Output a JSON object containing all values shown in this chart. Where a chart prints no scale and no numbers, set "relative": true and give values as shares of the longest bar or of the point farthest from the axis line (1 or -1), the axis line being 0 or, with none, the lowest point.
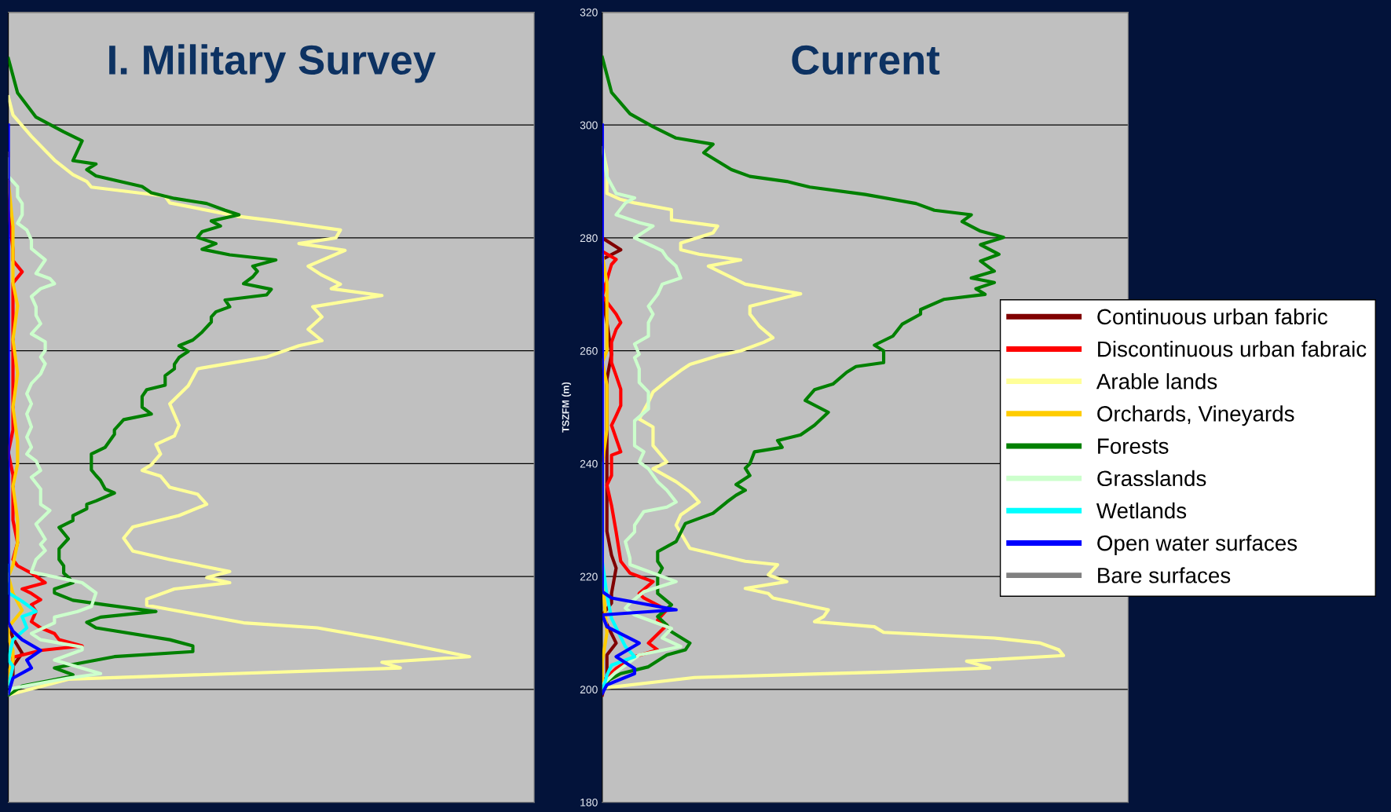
{
  "chart_data": [
    {
      "type": "line",
      "title": "I. Military Survey",
      "orientation": "horizontal",
      "relative": true,
      "ylim": [
        180,
        320
      ],
      "yticks": [
        180,
        200,
        220,
        240,
        260,
        280,
        300,
        320
      ],
      "grid": "y",
      "tick_labels": false,
      "legend": false,
      "line_style": "solid",
      "marker": "none",
      "series": [
        {
          "color": "#800000",
          "x": [
            200.5,
            202.6,
            204.1,
            206.4,
            209.1,
            211.5
          ],
          "values": [
            0,
            0.01,
            0.01,
            0.03,
            0.01,
            0
          ]
        },
        {
          "color": "#ff0000",
          "x": [
            201.7,
            204.1,
            205.7,
            206.9,
            207.7,
            208.8,
            209.9,
            210.9,
            212,
            213.8,
            215,
            215.9,
            217,
            217.8,
            218.9,
            220.6,
            221.9,
            223,
            226,
            230,
            234,
            238,
            242,
            246,
            250,
            255,
            258,
            262,
            265,
            268,
            272,
            274,
            276,
            278,
            285,
            290
          ],
          "values": [
            0,
            0.01,
            0.01,
            0.07,
            0.16,
            0.11,
            0.1,
            0.07,
            0.05,
            0.06,
            0.05,
            0.07,
            0.05,
            0.03,
            0.08,
            0.05,
            0.02,
            0.01,
            0.02,
            0.01,
            0.01,
            0.01,
            0,
            0.01,
            0.01,
            0.01,
            0.01,
            0.01,
            0.01,
            0.01,
            0.01,
            0.03,
            0.01,
            0.01,
            0,
            0
          ]
        },
        {
          "color": "#ffff99",
          "x": [
            199,
            201.8,
            203.8,
            204.8,
            205.8,
            208.9,
            210.9,
            211.8,
            214.9,
            216,
            217.8,
            218.9,
            219.8,
            220.9,
            223,
            224.5,
            226.8,
            228.8,
            230.8,
            232.8,
            234.6,
            235.8,
            237.8,
            238.8,
            239.8,
            241.7,
            243.4,
            244.9,
            246.8,
            250.6,
            253.8,
            256.8,
            258.9,
            260.9,
            261.8,
            263.8,
            266,
            267.8,
            269.8,
            271,
            271.8,
            273.4,
            275,
            277.8,
            279,
            280,
            281.4,
            283,
            283.8,
            286.2,
            287.4,
            289,
            290,
            291.2,
            293.8,
            298,
            301.8,
            305
          ],
          "values": [
            0,
            0.13,
            0.85,
            0.81,
            1.0,
            0.81,
            0.67,
            0.51,
            0.3,
            0.3,
            0.36,
            0.48,
            0.43,
            0.48,
            0.35,
            0.27,
            0.25,
            0.27,
            0.37,
            0.43,
            0.41,
            0.35,
            0.33,
            0.29,
            0.31,
            0.33,
            0.32,
            0.36,
            0.37,
            0.35,
            0.39,
            0.41,
            0.56,
            0.63,
            0.68,
            0.65,
            0.68,
            0.66,
            0.81,
            0.7,
            0.72,
            0.68,
            0.65,
            0.73,
            0.63,
            0.71,
            0.72,
            0.58,
            0.5,
            0.35,
            0.34,
            0.18,
            0.17,
            0.14,
            0.1,
            0.05,
            0.01,
            0
          ]
        },
        {
          "color": "#ffcc00",
          "x": [
            201,
            203,
            205,
            207,
            209,
            211,
            213,
            214,
            217,
            220,
            222,
            226,
            230,
            236,
            240,
            244,
            250,
            256,
            262,
            268,
            272,
            278,
            282,
            290,
            295
          ],
          "values": [
            0,
            0,
            0.01,
            0.01,
            0,
            0,
            0.02,
            0.03,
            0.01,
            0,
            0.01,
            0.02,
            0.02,
            0.01,
            0.02,
            0.02,
            0.01,
            0.02,
            0.01,
            0.02,
            0.01,
            0.01,
            0.01,
            0,
            0
          ]
        },
        {
          "color": "#008000",
          "x": [
            199,
            200.6,
            202.2,
            202.6,
            203.8,
            205.8,
            206.7,
            207.7,
            208.8,
            210.9,
            211.9,
            212.8,
            213.8,
            215,
            215.8,
            217.1,
            217.8,
            218.9,
            219.9,
            220.6,
            221.9,
            223,
            224.9,
            226.7,
            228.7,
            229.9,
            230.8,
            232,
            232.8,
            233.4,
            234.8,
            235.5,
            237,
            237.9,
            238.9,
            241.7,
            242.9,
            245.2,
            246,
            247.8,
            248.8,
            250,
            251.9,
            253.1,
            253.9,
            255.6,
            256.8,
            257.6,
            258.8,
            259.9,
            260.9,
            261.9,
            263.3,
            265.1,
            266,
            266.9,
            267.8,
            269,
            269.9,
            270.9,
            271.9,
            273.1,
            274.1,
            275,
            276.1,
            277,
            278,
            279,
            280.1,
            281.1,
            282.1,
            283,
            284.1,
            284.9,
            286.1,
            287,
            288,
            289.1,
            291,
            292.1,
            293.1,
            293.7,
            297.2,
            298.8,
            301.4,
            305.7,
            311.8
          ],
          "values": [
            0,
            0.03,
            0.13,
            0.14,
            0.1,
            0.23,
            0.4,
            0.4,
            0.35,
            0.19,
            0.17,
            0.2,
            0.32,
            0.21,
            0.14,
            0.1,
            0.1,
            0.14,
            0.13,
            0.12,
            0.12,
            0.11,
            0.11,
            0.13,
            0.11,
            0.14,
            0.14,
            0.17,
            0.17,
            0.19,
            0.23,
            0.21,
            0.2,
            0.19,
            0.18,
            0.18,
            0.21,
            0.23,
            0.23,
            0.25,
            0.31,
            0.29,
            0.29,
            0.3,
            0.34,
            0.34,
            0.36,
            0.36,
            0.37,
            0.39,
            0.37,
            0.4,
            0.42,
            0.44,
            0.44,
            0.45,
            0.48,
            0.47,
            0.56,
            0.57,
            0.51,
            0.53,
            0.54,
            0.53,
            0.58,
            0.48,
            0.42,
            0.45,
            0.41,
            0.42,
            0.46,
            0.44,
            0.5,
            0.47,
            0.43,
            0.36,
            0.31,
            0.29,
            0.19,
            0.17,
            0.19,
            0.14,
            0.16,
            0.12,
            0.06,
            0.02,
            0
          ]
        },
        {
          "color": "#ccffcc",
          "x": [
            199.5,
            200.2,
            202,
            202.8,
            205.2,
            207,
            207.5,
            208.8,
            209.9,
            211.8,
            212.8,
            213.8,
            214.7,
            217.1,
            218.9,
            220.8,
            223,
            224.6,
            225.7,
            226.6,
            229.3,
            231.7,
            232.8,
            235.5,
            237.6,
            238.8,
            240.5,
            241.7,
            242.9,
            244.7,
            246.5,
            248.8,
            250.6,
            252.4,
            254.2,
            255.9,
            257.7,
            258.9,
            260.1,
            261.6,
            263,
            264.8,
            266.3,
            267.8,
            269.6,
            271,
            271.9,
            272.8,
            273.7,
            276.1,
            278.1,
            279.6,
            281.4,
            282.6,
            284.1,
            286.1,
            287.3,
            289.1,
            290.9,
            294
          ],
          "values": [
            0,
            0.01,
            0.13,
            0.2,
            0.1,
            0.16,
            0.16,
            0.07,
            0.05,
            0.1,
            0.1,
            0.15,
            0.18,
            0.19,
            0.16,
            0.05,
            0.06,
            0.08,
            0.07,
            0.08,
            0.06,
            0.09,
            0.07,
            0.07,
            0.05,
            0.07,
            0.06,
            0.04,
            0.05,
            0.04,
            0.05,
            0.04,
            0.05,
            0.04,
            0.05,
            0.07,
            0.08,
            0.07,
            0.08,
            0.08,
            0.05,
            0.07,
            0.06,
            0.06,
            0.05,
            0.07,
            0.1,
            0.09,
            0.06,
            0.08,
            0.05,
            0.05,
            0.04,
            0.02,
            0.03,
            0.03,
            0.02,
            0.02,
            0,
            0
          ]
        },
        {
          "color": "#00ffff",
          "x": [
            200.5,
            204.1,
            205.2,
            208.8,
            210.9,
            212.9,
            213.8,
            215.6,
            217.1,
            222
          ],
          "values": [
            0,
            0.01,
            0,
            0.01,
            0.04,
            0.03,
            0.06,
            0.03,
            0,
            0
          ]
        },
        {
          "color": "#0000ff",
          "x": [
            199.3,
            202,
            203.8,
            205.2,
            206.9,
            208.8,
            210.3,
            211.8,
            300
          ],
          "values": [
            0,
            0.01,
            0.05,
            0.04,
            0.07,
            0.03,
            0.01,
            0,
            0
          ]
        }
      ]
    },
    {
      "type": "line",
      "title": "Current",
      "ylabel": "TSZFM (m)",
      "orientation": "horizontal",
      "relative": true,
      "ylim": [
        180,
        320
      ],
      "yticks": [
        180,
        200,
        220,
        240,
        260,
        280,
        300,
        320
      ],
      "grid": "y",
      "tick_labels": "y",
      "legend": "right",
      "line_style": "solid",
      "marker": "none",
      "series": [
        {
          "name": "Continuous urban fabric",
          "color": "#800000",
          "x": [
            199,
            202.5,
            206.1,
            208.2,
            213.2,
            215.3,
            217,
            221.5,
            223.8,
            228,
            235,
            245,
            255,
            259.4,
            265,
            270,
            276.2,
            277.9,
            280
          ],
          "values": [
            0,
            0.01,
            0.01,
            0.03,
            0,
            0.02,
            0.02,
            0.03,
            0.02,
            0.01,
            0.01,
            0.01,
            0.01,
            0.02,
            0.01,
            0,
            0,
            0.04,
            0
          ]
        },
        {
          "name": "Discontinuous urban fabraic",
          "color": "#ff0000",
          "x": [
            201.4,
            203.7,
            205.8,
            207,
            208.2,
            211.4,
            212.3,
            214.1,
            216.2,
            217,
            219.1,
            220.6,
            222.7,
            227.9,
            232.6,
            236.2,
            237.9,
            241.5,
            242.1,
            246.8,
            248.5,
            250.3,
            253.2,
            255.6,
            257.9,
            259.1,
            261.5,
            263.8,
            265,
            266.5,
            269.7,
            272.6,
            275.3,
            276.2,
            277.6
          ],
          "values": [
            0,
            0.03,
            0.07,
            0.12,
            0.1,
            0.14,
            0.12,
            0.14,
            0.09,
            0.08,
            0.11,
            0.06,
            0.04,
            0.03,
            0.02,
            0.01,
            0.02,
            0.02,
            0.04,
            0.02,
            0.03,
            0.04,
            0.04,
            0.03,
            0.02,
            0.02,
            0.02,
            0.03,
            0.04,
            0.03,
            0,
            0.01,
            0.02,
            0.03,
            0
          ]
        },
        {
          "name": "Arable lands",
          "color": "#ffff99",
          "x": [
            200.2,
            202.1,
            203.1,
            203.8,
            205,
            206,
            207,
            208.2,
            209.1,
            210.1,
            211.1,
            212,
            212.9,
            214.1,
            216.2,
            217,
            217.9,
            219.1,
            220.3,
            222.1,
            222.7,
            225,
            229.1,
            230.9,
            233.2,
            235,
            236.8,
            239.1,
            240.3,
            243.2,
            246.5,
            247.9,
            250.9,
            252.7,
            254.7,
            256.5,
            257.6,
            259.1,
            260,
            261.5,
            262.3,
            264.4,
            266.5,
            267.9,
            270.1,
            271.8,
            275,
            276.1,
            277.1,
            277.9,
            279.1,
            280.9,
            282.1,
            283.2,
            285,
            286.2,
            286.8,
            287.9,
            292.1,
            296
          ],
          "values": [
            0,
            0.2,
            0.62,
            0.84,
            0.79,
            1.0,
            0.99,
            0.95,
            0.85,
            0.61,
            0.59,
            0.46,
            0.48,
            0.49,
            0.37,
            0.36,
            0.31,
            0.4,
            0.36,
            0.38,
            0.31,
            0.19,
            0.16,
            0.17,
            0.21,
            0.19,
            0.16,
            0.11,
            0.14,
            0.11,
            0.11,
            0.08,
            0.1,
            0.11,
            0.14,
            0.17,
            0.19,
            0.25,
            0.3,
            0.35,
            0.37,
            0.34,
            0.32,
            0.32,
            0.43,
            0.31,
            0.23,
            0.3,
            0.21,
            0.17,
            0.17,
            0.24,
            0.25,
            0.15,
            0.15,
            0.07,
            0.04,
            0.01,
            0.01,
            0
          ]
        },
        {
          "name": "Orchards, Vineyards",
          "color": "#ffcc00",
          "x": [
            201,
            205,
            210,
            220,
            230,
            240,
            246,
            254,
            258,
            260,
            266,
            272,
            277
          ],
          "values": [
            0,
            0,
            0.01,
            0,
            0,
            0,
            0.01,
            0.01,
            0,
            0.01,
            0.01,
            0.01,
            0
          ]
        },
        {
          "name": "Forests",
          "color": "#008000",
          "x": [
            199.9,
            201.7,
            202.8,
            204,
            206.1,
            207,
            208.2,
            210.2,
            211.4,
            212.9,
            215,
            217,
            220,
            221.5,
            222.7,
            224.4,
            226.2,
            229.4,
            230.3,
            231.2,
            233.2,
            234.4,
            235.3,
            236.3,
            237.9,
            239.2,
            240,
            242.1,
            242.9,
            244.1,
            245.1,
            246.8,
            249.1,
            251.2,
            253.1,
            254.1,
            256.2,
            257.2,
            257.9,
            260,
            261,
            262.6,
            264.7,
            266.5,
            267.3,
            269.1,
            270,
            271,
            272.1,
            272.9,
            274.1,
            275.9,
            277.1,
            278.8,
            280.1,
            281.2,
            282.9,
            284.1,
            284.9,
            286.1,
            287.7,
            289,
            290,
            290.9,
            292.1,
            295.1,
            296.6,
            297.7,
            299.7,
            302,
            305.8,
            308.9,
            312
          ],
          "values": [
            0,
            0.015,
            0.04,
            0.1,
            0.14,
            0.18,
            0.19,
            0.15,
            0.14,
            0.12,
            0.15,
            0.12,
            0.12,
            0.13,
            0.12,
            0.12,
            0.16,
            0.18,
            0.21,
            0.24,
            0.27,
            0.29,
            0.31,
            0.29,
            0.32,
            0.31,
            0.32,
            0.33,
            0.39,
            0.38,
            0.43,
            0.46,
            0.49,
            0.44,
            0.46,
            0.5,
            0.53,
            0.55,
            0.61,
            0.61,
            0.59,
            0.63,
            0.65,
            0.69,
            0.69,
            0.74,
            0.83,
            0.81,
            0.85,
            0.8,
            0.85,
            0.82,
            0.86,
            0.82,
            0.87,
            0.82,
            0.78,
            0.8,
            0.72,
            0.68,
            0.57,
            0.45,
            0.4,
            0.32,
            0.28,
            0.22,
            0.24,
            0.16,
            0.11,
            0.06,
            0.02,
            0.01,
            0
          ]
        },
        {
          "name": "Grasslands",
          "color": "#ccffcc",
          "x": [
            200.8,
            203.1,
            206.1,
            207.6,
            209.1,
            210.8,
            213.2,
            214.4,
            215.3,
            217.3,
            219.1,
            222.1,
            223.2,
            226.2,
            227.9,
            229.1,
            231.5,
            232.3,
            233.2,
            235.3,
            236.8,
            239.1,
            240.3,
            242.1,
            243.2,
            245.6,
            247.6,
            249.7,
            251.2,
            252.7,
            254.4,
            256.8,
            258.8,
            259.4,
            261.2,
            262.6,
            265,
            266.5,
            267.9,
            270,
            271.8,
            272.9,
            275,
            276.5,
            277.7,
            278.5,
            280,
            282.1,
            282.7,
            284.1,
            286.2,
            287.1,
            287.9,
            290.9,
            296
          ],
          "values": [
            0,
            0.03,
            0.08,
            0.17,
            0.13,
            0.15,
            0.07,
            0.05,
            0.06,
            0.09,
            0.16,
            0.06,
            0.06,
            0.05,
            0.07,
            0.07,
            0.09,
            0.14,
            0.16,
            0.14,
            0.12,
            0.1,
            0.08,
            0.09,
            0.07,
            0.07,
            0.07,
            0.1,
            0.1,
            0.1,
            0.08,
            0.08,
            0.07,
            0.08,
            0.07,
            0.1,
            0.1,
            0.11,
            0.1,
            0.12,
            0.13,
            0.17,
            0.16,
            0.14,
            0.13,
            0.11,
            0.07,
            0.11,
            0.08,
            0.03,
            0.05,
            0.07,
            0.03,
            0.01,
            0
          ]
        },
        {
          "name": "Wetlands",
          "color": "#00ffff",
          "x": [
            199.6,
            202.5,
            204.3,
            205.8,
            207.6,
            212.6,
            216.7,
            222.7,
            240
          ],
          "values": [
            0,
            0.01,
            0.02,
            0.07,
            0.05,
            0.02,
            0.01,
            0,
            0
          ]
        },
        {
          "name": "Open water surfaces",
          "color": "#0000ff",
          "x": [
            199.3,
            200.8,
            202.8,
            203.7,
            205.8,
            208.2,
            211.1,
            213.2,
            214.1,
            216.2,
            217.3,
            300
          ],
          "values": [
            0,
            0.01,
            0.07,
            0.07,
            0.03,
            0.08,
            0.01,
            0,
            0.16,
            0.02,
            0,
            0
          ]
        },
        {
          "name": "Bare surfaces",
          "color": "#808080"
        }
      ]
    }
  ]
}
